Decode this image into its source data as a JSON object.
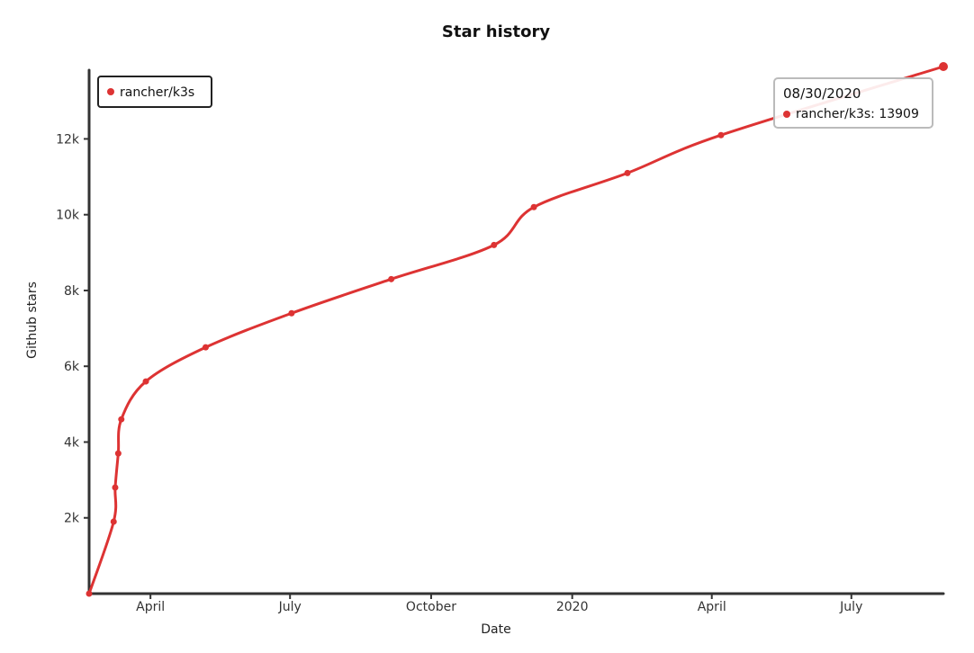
{
  "chart_data": {
    "type": "line",
    "title": "Star history",
    "xlabel": "Date",
    "ylabel": "Github stars",
    "x_ticks": [
      "April",
      "July",
      "October",
      "2020",
      "April",
      "July"
    ],
    "y_ticks": [
      "2k",
      "4k",
      "6k",
      "8k",
      "10k",
      "12k"
    ],
    "series": [
      {
        "name": "rancher/k3s",
        "color": "#dd3333",
        "points": [
          {
            "x": "2019-02-20",
            "y": 0
          },
          {
            "x": "2019-03-08",
            "y": 1900
          },
          {
            "x": "2019-03-09",
            "y": 2800
          },
          {
            "x": "2019-03-11",
            "y": 3700
          },
          {
            "x": "2019-03-13",
            "y": 4600
          },
          {
            "x": "2019-03-29",
            "y": 5600
          },
          {
            "x": "2019-05-07",
            "y": 6500
          },
          {
            "x": "2019-07-02",
            "y": 7400
          },
          {
            "x": "2019-09-05",
            "y": 8300
          },
          {
            "x": "2019-11-11",
            "y": 9200
          },
          {
            "x": "2019-12-07",
            "y": 10200
          },
          {
            "x": "2020-02-06",
            "y": 11100
          },
          {
            "x": "2020-04-07",
            "y": 12100
          },
          {
            "x": "2020-08-30",
            "y": 13909
          }
        ]
      }
    ],
    "legend": {
      "position": "top-left",
      "entries": [
        "rancher/k3s"
      ]
    },
    "tooltip": {
      "date": "08/30/2020",
      "text": "rancher/k3s: 13909"
    }
  }
}
